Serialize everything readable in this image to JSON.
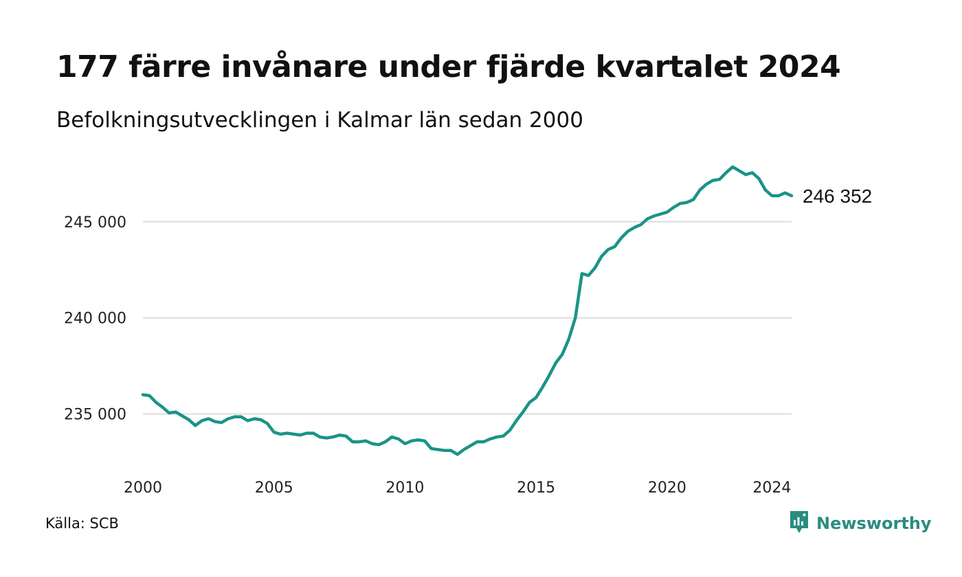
{
  "header": {
    "title": "177 färre invånare under fjärde kvartalet 2024",
    "subtitle": "Befolkningsutvecklingen i Kalmar län sedan 2000"
  },
  "footer": {
    "source": "Källa: SCB",
    "brand": "Newsworthy"
  },
  "colors": {
    "line": "#1a9485",
    "grid": "#dddddd",
    "brand": "#2a8c80"
  },
  "icons": {
    "brand_logo": "bar-chart-speech-bubble-icon"
  },
  "chart_data": {
    "type": "line",
    "title": "",
    "xlabel": "",
    "ylabel": "",
    "x_start": 2000.0,
    "x_step": 0.25,
    "xlim": [
      2000,
      2024.75
    ],
    "ylim": [
      232700,
      248100
    ],
    "x_ticks": [
      {
        "value": 2000,
        "label": "2000"
      },
      {
        "value": 2005,
        "label": "2005"
      },
      {
        "value": 2010,
        "label": "2010"
      },
      {
        "value": 2015,
        "label": "2015"
      },
      {
        "value": 2020,
        "label": "2020"
      },
      {
        "value": 2024,
        "label": "2024"
      }
    ],
    "y_ticks": [
      {
        "value": 235000,
        "label": "235 000"
      },
      {
        "value": 240000,
        "label": "240 000"
      },
      {
        "value": 245000,
        "label": "245 000"
      }
    ],
    "grid": "horizontal",
    "last_value_label": "246 352",
    "series": [
      {
        "values": [
          236000,
          235950,
          235600,
          235350,
          235050,
          235100,
          234900,
          234700,
          234400,
          234650,
          234750,
          234600,
          234550,
          234750,
          234850,
          234850,
          234650,
          234750,
          234700,
          234500,
          234050,
          233950,
          234000,
          233950,
          233900,
          234000,
          234000,
          233800,
          233750,
          233800,
          233900,
          233850,
          233550,
          233550,
          233600,
          233450,
          233400,
          233550,
          233800,
          233700,
          233450,
          233600,
          233650,
          233600,
          233200,
          233150,
          233100,
          233100,
          232900,
          233150,
          233350,
          233550,
          233550,
          233700,
          233800,
          233850,
          234150,
          234650,
          235100,
          235600,
          235850,
          236400,
          237000,
          237650,
          238100,
          238900,
          240000,
          242300,
          242200,
          242600,
          243200,
          243550,
          243700,
          244150,
          244500,
          244700,
          244850,
          245150,
          245300,
          245400,
          245500,
          245750,
          245950,
          246000,
          246150,
          246650,
          246950,
          247150,
          247200,
          247550,
          247850,
          247650,
          247450,
          247550,
          247250,
          246650,
          246350,
          246350,
          246500,
          246352
        ]
      }
    ]
  }
}
